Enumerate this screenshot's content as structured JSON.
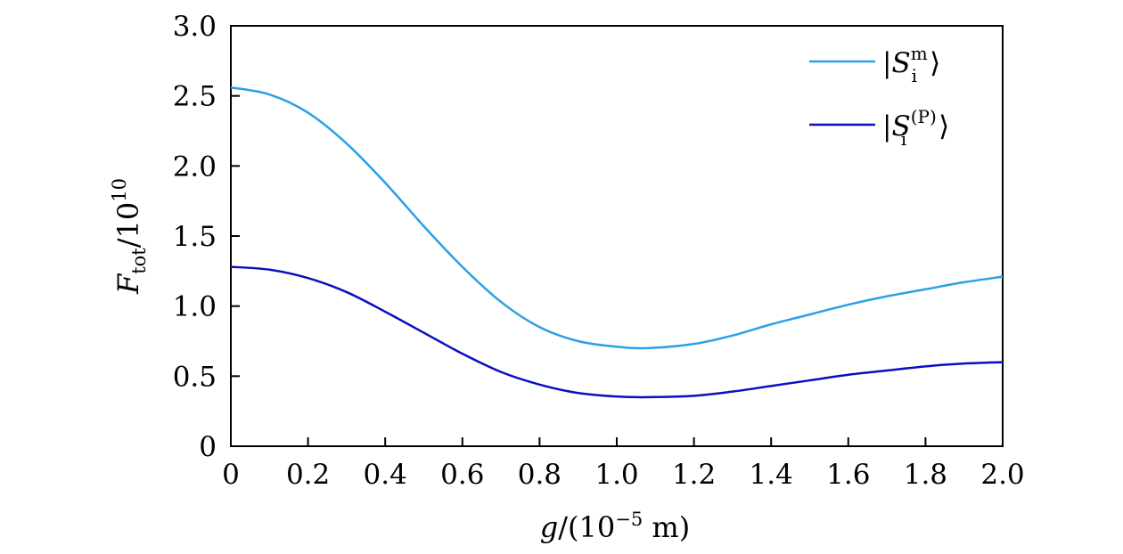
{
  "chart_data": {
    "type": "line",
    "x_ticks": [
      "0",
      "0.2",
      "0.4",
      "0.6",
      "0.8",
      "1.0",
      "1.2",
      "1.4",
      "1.6",
      "1.8",
      "2.0"
    ],
    "y_ticks": [
      "0",
      "0.5",
      "1.0",
      "1.5",
      "2.0",
      "2.5",
      "3.0"
    ],
    "xlim": [
      0,
      2.0
    ],
    "ylim": [
      0,
      3.0
    ],
    "xlabel": {
      "var": "g",
      "pre": "/(10",
      "exp": "−5",
      "unit": " m)"
    },
    "ylabel": {
      "var": "F",
      "sub": "tot",
      "mid": "/10",
      "exp": "10"
    },
    "grid": false,
    "legend_position": "top-right",
    "series": [
      {
        "name": "|S_i^m⟩",
        "legend": {
          "base": "S",
          "sub": "i",
          "sup": "m"
        },
        "color": "#2aa0e6",
        "x": [
          0,
          0.1,
          0.2,
          0.3,
          0.4,
          0.5,
          0.6,
          0.7,
          0.8,
          0.9,
          1.0,
          1.08,
          1.2,
          1.3,
          1.4,
          1.5,
          1.6,
          1.7,
          1.8,
          1.9,
          2.0
        ],
        "y": [
          2.56,
          2.51,
          2.38,
          2.16,
          1.88,
          1.57,
          1.28,
          1.03,
          0.85,
          0.75,
          0.71,
          0.7,
          0.73,
          0.79,
          0.87,
          0.94,
          1.01,
          1.07,
          1.12,
          1.17,
          1.21
        ]
      },
      {
        "name": "|S_i^(P)⟩",
        "legend": {
          "base": "S",
          "sub": "i",
          "sup": "(P)"
        },
        "color": "#0a0fc0",
        "x": [
          0,
          0.1,
          0.2,
          0.3,
          0.4,
          0.5,
          0.6,
          0.7,
          0.8,
          0.9,
          1.0,
          1.08,
          1.2,
          1.3,
          1.4,
          1.5,
          1.6,
          1.7,
          1.8,
          1.9,
          2.0
        ],
        "y": [
          1.28,
          1.26,
          1.2,
          1.1,
          0.96,
          0.81,
          0.66,
          0.53,
          0.44,
          0.38,
          0.355,
          0.35,
          0.36,
          0.39,
          0.43,
          0.47,
          0.51,
          0.54,
          0.57,
          0.59,
          0.6
        ]
      }
    ]
  }
}
